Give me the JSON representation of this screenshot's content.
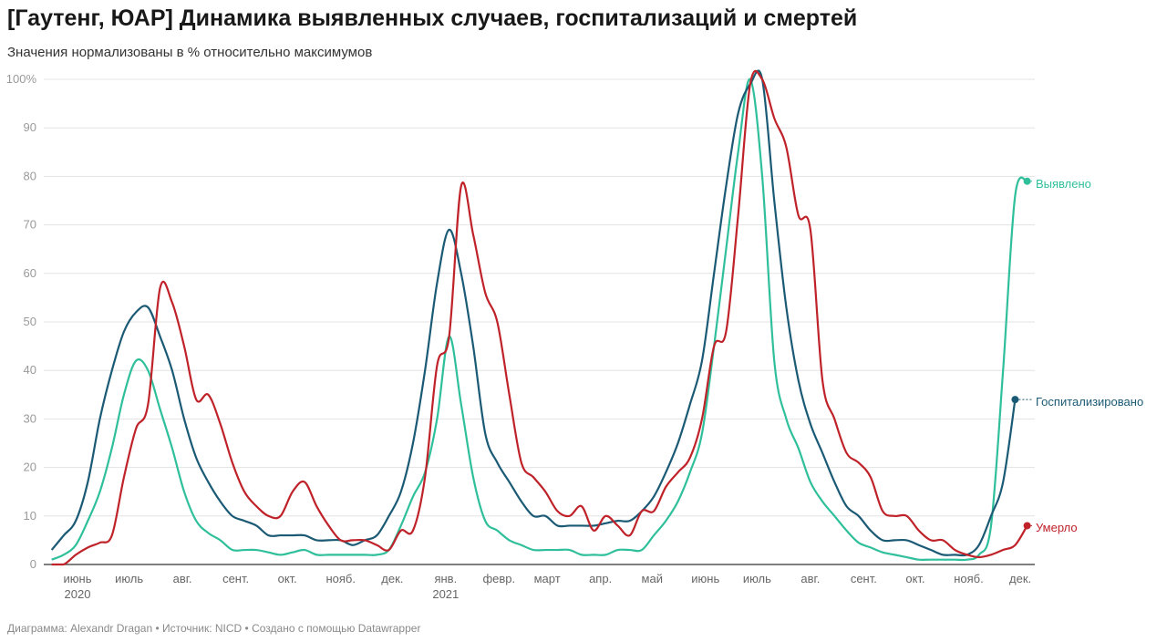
{
  "title": "[Гаутенг, ЮАР] Динамика выявленных случаев, госпитализаций и смертей",
  "subtitle": "Значения нормализованы в % относительно максимумов",
  "footer": "Диаграмма: Alexandr Dragan • Источник: NICD • Создано с помощью Datawrapper",
  "chart_data": {
    "type": "line",
    "title": "[Гаутенг, ЮАР] Динамика выявленных случаев, госпитализаций и смертей",
    "subtitle": "Значения нормализованы в % относительно максимумов",
    "ylim": [
      0,
      100
    ],
    "y_ticks": [
      0,
      10,
      20,
      30,
      40,
      50,
      60,
      70,
      80,
      90,
      100
    ],
    "y_tick_labels": [
      "0",
      "10",
      "20",
      "30",
      "40",
      "50",
      "60",
      "70",
      "80",
      "90",
      "100%"
    ],
    "grid": true,
    "legend": "direct labels at line ends (right)",
    "x_ticks": [
      {
        "date": "2020-06-01",
        "label": "июнь",
        "year": "2020"
      },
      {
        "date": "2020-07-01",
        "label": "июль"
      },
      {
        "date": "2020-08-01",
        "label": "авг."
      },
      {
        "date": "2020-09-01",
        "label": "сент."
      },
      {
        "date": "2020-10-01",
        "label": "окт."
      },
      {
        "date": "2020-11-01",
        "label": "нояб."
      },
      {
        "date": "2020-12-01",
        "label": "дек."
      },
      {
        "date": "2021-01-01",
        "label": "янв.",
        "year": "2021"
      },
      {
        "date": "2021-02-01",
        "label": "февр."
      },
      {
        "date": "2021-03-01",
        "label": "март"
      },
      {
        "date": "2021-04-01",
        "label": "апр."
      },
      {
        "date": "2021-05-01",
        "label": "май"
      },
      {
        "date": "2021-06-01",
        "label": "июнь"
      },
      {
        "date": "2021-07-01",
        "label": "июль"
      },
      {
        "date": "2021-08-01",
        "label": "авг."
      },
      {
        "date": "2021-09-01",
        "label": "сент."
      },
      {
        "date": "2021-10-01",
        "label": "окт."
      },
      {
        "date": "2021-11-01",
        "label": "нояб."
      },
      {
        "date": "2021-12-01",
        "label": "дек."
      }
    ],
    "x": [
      "2020-05-17",
      "2020-05-24",
      "2020-05-31",
      "2020-06-07",
      "2020-06-14",
      "2020-06-21",
      "2020-06-28",
      "2020-07-05",
      "2020-07-12",
      "2020-07-19",
      "2020-07-26",
      "2020-08-02",
      "2020-08-09",
      "2020-08-16",
      "2020-08-23",
      "2020-08-30",
      "2020-09-06",
      "2020-09-13",
      "2020-09-20",
      "2020-09-27",
      "2020-10-04",
      "2020-10-11",
      "2020-10-18",
      "2020-10-25",
      "2020-11-01",
      "2020-11-08",
      "2020-11-15",
      "2020-11-22",
      "2020-11-29",
      "2020-12-06",
      "2020-12-13",
      "2020-12-20",
      "2020-12-27",
      "2021-01-03",
      "2021-01-10",
      "2021-01-17",
      "2021-01-24",
      "2021-01-31",
      "2021-02-07",
      "2021-02-14",
      "2021-02-21",
      "2021-02-28",
      "2021-03-07",
      "2021-03-14",
      "2021-03-21",
      "2021-03-28",
      "2021-04-04",
      "2021-04-11",
      "2021-04-18",
      "2021-04-25",
      "2021-05-02",
      "2021-05-09",
      "2021-05-16",
      "2021-05-23",
      "2021-05-30",
      "2021-06-06",
      "2021-06-13",
      "2021-06-20",
      "2021-06-27",
      "2021-07-04",
      "2021-07-11",
      "2021-07-18",
      "2021-07-25",
      "2021-08-01",
      "2021-08-08",
      "2021-08-15",
      "2021-08-22",
      "2021-08-29",
      "2021-09-05",
      "2021-09-12",
      "2021-09-19",
      "2021-09-26",
      "2021-10-03",
      "2021-10-10",
      "2021-10-17",
      "2021-10-24",
      "2021-10-31",
      "2021-11-07",
      "2021-11-14",
      "2021-11-21",
      "2021-11-28",
      "2021-12-05"
    ],
    "series": [
      {
        "name": "Выявлено",
        "color": "#2fbf9b",
        "values": [
          1,
          2,
          4,
          9,
          15,
          24,
          35,
          42,
          40,
          32,
          24,
          15,
          9,
          6.5,
          5,
          3,
          3,
          3,
          2.5,
          2,
          2.5,
          3,
          2,
          2,
          2,
          2,
          2,
          2,
          3,
          8,
          14,
          19,
          30,
          47,
          33,
          18,
          9,
          7,
          5,
          4,
          3,
          3,
          3,
          3,
          2,
          2,
          2,
          3,
          3,
          3,
          6,
          9,
          13,
          19,
          27,
          45,
          65,
          85,
          100,
          80,
          42,
          30,
          24,
          17,
          13,
          10,
          7,
          4.5,
          3.5,
          2.5,
          2,
          1.5,
          1,
          1,
          1,
          1,
          1,
          2,
          8,
          40,
          76,
          79
        ]
      },
      {
        "name": "Госпитализировано",
        "color": "#1b5a75",
        "values": [
          3,
          6,
          9,
          17,
          30,
          40,
          48,
          52,
          53,
          47,
          40,
          30,
          22,
          17,
          13,
          10,
          9,
          8,
          6,
          6,
          6,
          6,
          5,
          5,
          5,
          4,
          5,
          6,
          10,
          15,
          25,
          40,
          58,
          69,
          60,
          45,
          27,
          21,
          17,
          13,
          10,
          10,
          8,
          8,
          8,
          8,
          8.5,
          9,
          9,
          11,
          14,
          19,
          25,
          33,
          42,
          60,
          78,
          93,
          99,
          100,
          75,
          53,
          38,
          29,
          23,
          17,
          12,
          10,
          7,
          5,
          5,
          5,
          4,
          3,
          2,
          2,
          2,
          4,
          10,
          17,
          34,
          null
        ]
      },
      {
        "name": "Умерло",
        "color": "#bf2229",
        "values": [
          0,
          0,
          2,
          3.5,
          4.5,
          6,
          18,
          28,
          33,
          57,
          54,
          45,
          34,
          35,
          29,
          21,
          15,
          12,
          10,
          10,
          15,
          17,
          12,
          8,
          5,
          5,
          5,
          4,
          3,
          7,
          7,
          18,
          41,
          47,
          78,
          68,
          56,
          50,
          35,
          21,
          18,
          15,
          11,
          10,
          12,
          7,
          10,
          8,
          6,
          11,
          11,
          16,
          19,
          22,
          30,
          45,
          48,
          72,
          99,
          100,
          92,
          86,
          72,
          69,
          38,
          30,
          23,
          21,
          18,
          11,
          10,
          10,
          7,
          5,
          5,
          3,
          2,
          1.5,
          2,
          3,
          4,
          8
        ]
      }
    ]
  }
}
